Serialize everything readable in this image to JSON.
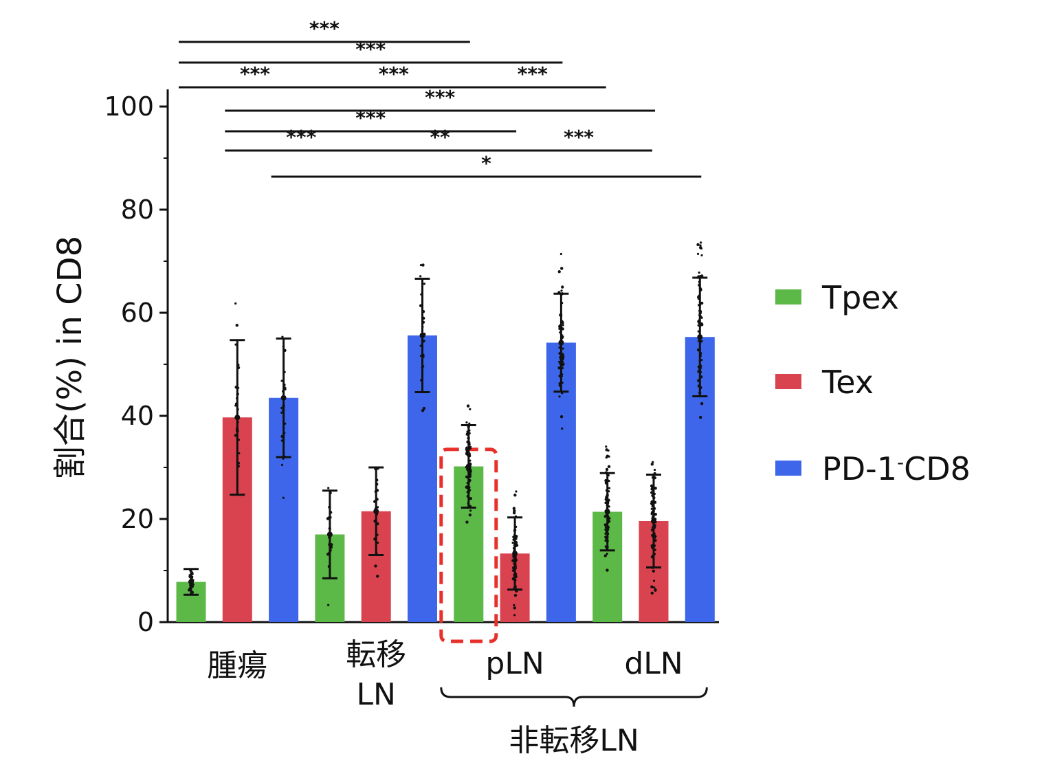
{
  "chart_data": {
    "type": "bar",
    "ylabel": "割合(%) in CD8",
    "ylim": [
      0,
      100
    ],
    "yticks": [
      0,
      20,
      40,
      60,
      80,
      100
    ],
    "groups": [
      {
        "label_lines": [
          "腫瘍"
        ]
      },
      {
        "label_lines": [
          "転移",
          "LN"
        ]
      },
      {
        "label_lines": [
          "pLN"
        ]
      },
      {
        "label_lines": [
          "dLN"
        ]
      }
    ],
    "bracket_label": "非転移LN",
    "series": [
      {
        "name": "Tpex",
        "color": "#5db947",
        "values": [
          7.8,
          17.0,
          30.2,
          21.4
        ],
        "sd": [
          2.5,
          8.5,
          8.0,
          7.5
        ]
      },
      {
        "name": "Tex",
        "name_sup": "",
        "color": "#d9434f",
        "values": [
          39.7,
          21.5,
          13.3,
          19.6
        ],
        "sd": [
          15.0,
          8.5,
          7.0,
          9.0
        ]
      },
      {
        "name": "PD-1",
        "name_sup": "-",
        "name_suffix": "CD8",
        "color": "#3d66ea",
        "values": [
          43.5,
          55.6,
          54.2,
          55.3
        ],
        "sd": [
          11.5,
          11.0,
          9.5,
          11.5
        ]
      }
    ],
    "significance": [
      {
        "label": "***",
        "bar_from": [
          0,
          0
        ],
        "bar_to": [
          2,
          0
        ],
        "level": 1
      },
      {
        "label": "***",
        "bar_from": [
          0,
          0
        ],
        "bar_to": [
          2,
          2
        ],
        "level": 2
      },
      {
        "label": "***",
        "bar_from": [
          0,
          0
        ],
        "bar_to": [
          1,
          0
        ],
        "level": 3
      },
      {
        "label": "***",
        "bar_from": [
          1,
          0
        ],
        "bar_to": [
          2,
          0
        ],
        "level": 3
      },
      {
        "label": "***",
        "bar_from": [
          2,
          0
        ],
        "bar_to": [
          3,
          0
        ],
        "level": 3
      },
      {
        "label": "***",
        "bar_from": [
          0,
          1
        ],
        "bar_to": [
          3,
          1
        ],
        "level": 4
      },
      {
        "label": "***",
        "bar_from": [
          0,
          1
        ],
        "bar_to": [
          2,
          1
        ],
        "level": 5
      },
      {
        "label": "***",
        "bar_from": [
          0,
          1
        ],
        "bar_to": [
          1,
          1
        ],
        "level": 6
      },
      {
        "label": "**",
        "bar_from": [
          1,
          1
        ],
        "bar_to": [
          2,
          1
        ],
        "level": 6
      },
      {
        "label": "***",
        "bar_from": [
          2,
          1
        ],
        "bar_to": [
          3,
          1
        ],
        "level": 6
      },
      {
        "label": "*",
        "bar_from": [
          0,
          2
        ],
        "bar_to": [
          3,
          2
        ],
        "level": 7
      }
    ],
    "highlight": {
      "group": 2,
      "series": 0,
      "color": "#e8302a",
      "style": "dashed"
    },
    "legend": {
      "position": "right"
    }
  }
}
